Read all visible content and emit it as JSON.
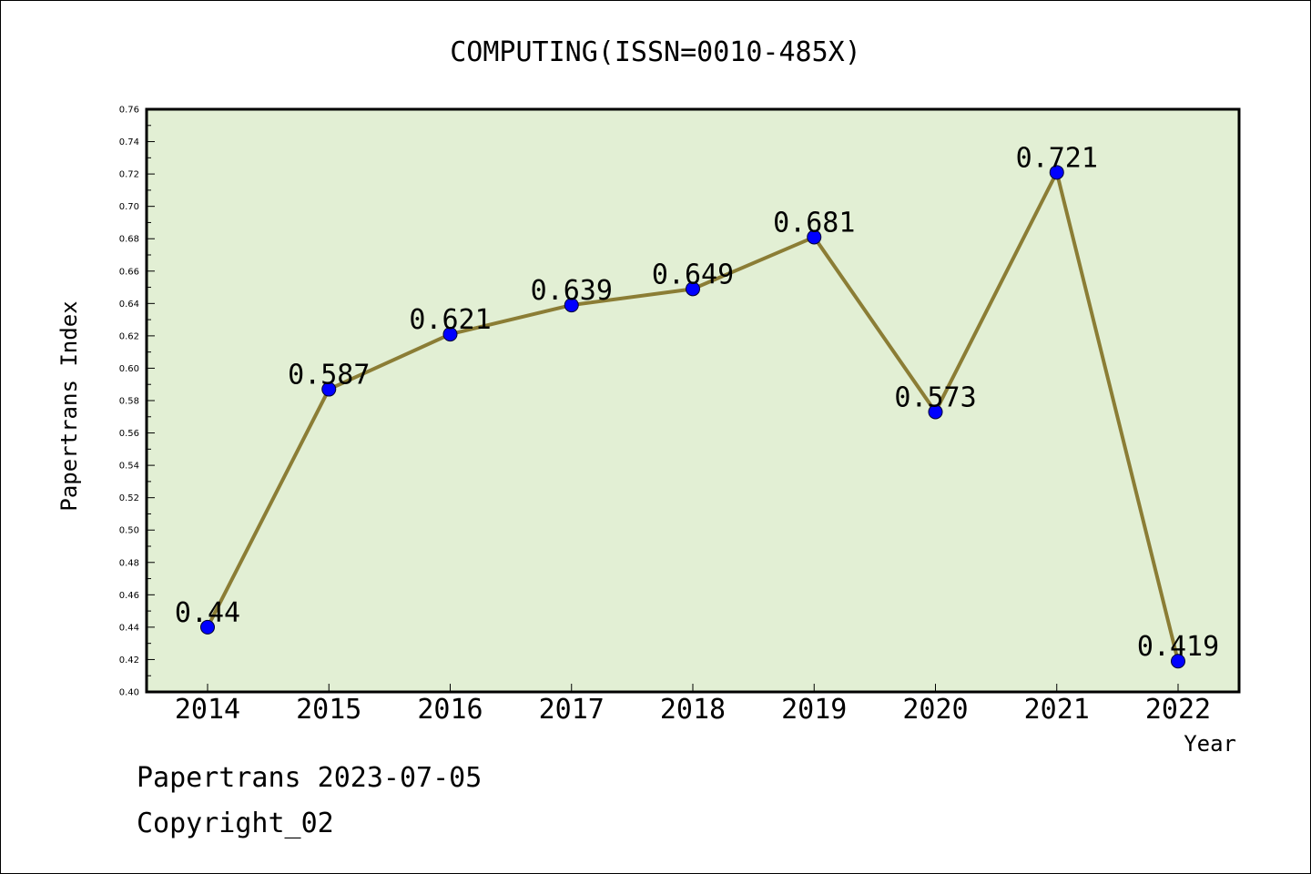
{
  "chart_data": {
    "type": "line",
    "title": "COMPUTING(ISSN=0010-485X)",
    "xlabel": "Year",
    "ylabel": "Papertrans Index",
    "categories": [
      "2014",
      "2015",
      "2016",
      "2017",
      "2018",
      "2019",
      "2020",
      "2021",
      "2022"
    ],
    "series": [
      {
        "values": [
          0.44,
          0.587,
          0.621,
          0.639,
          0.649,
          0.681,
          0.573,
          0.721,
          0.419
        ],
        "data_labels": [
          "0.44",
          "0.587",
          "0.621",
          "0.639",
          "0.649",
          "0.681",
          "0.573",
          "0.721",
          "0.419"
        ]
      }
    ],
    "ylim": [
      0.4,
      0.76
    ],
    "yticks": [
      "0.40",
      "0.42",
      "0.44",
      "0.46",
      "0.48",
      "0.50",
      "0.52",
      "0.54",
      "0.56",
      "0.58",
      "0.60",
      "0.62",
      "0.64",
      "0.66",
      "0.68",
      "0.70",
      "0.72",
      "0.74",
      "0.76"
    ],
    "grid": false,
    "legend": "none"
  },
  "footer": {
    "line1": "Papertrans 2023-07-05",
    "line2": "Copyright_02"
  },
  "colors": {
    "plot_background": "#e2efd4",
    "line": "#8b7d35",
    "marker": "#0000ff",
    "axis": "#000000"
  }
}
